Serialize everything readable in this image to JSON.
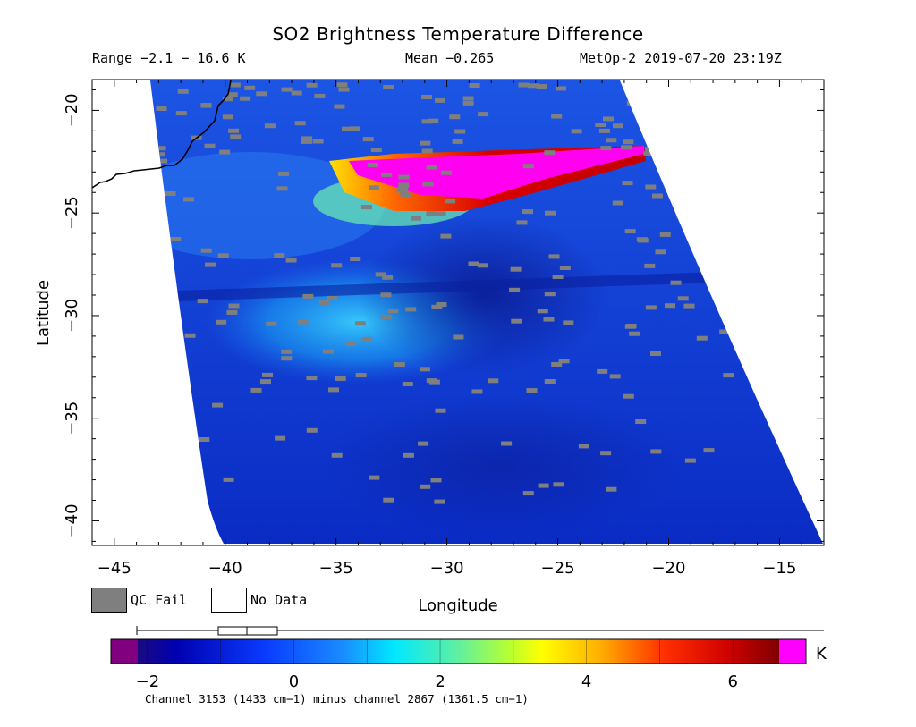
{
  "header": {
    "title": "SO2 Brightness Temperature Difference",
    "range": "Range −2.1 − 16.6 K",
    "mean": "Mean −0.265",
    "satellite": "MetOp-2 2019-07-20 23:19Z"
  },
  "legend": {
    "qc_fail": "QC Fail",
    "no_data": "No Data",
    "qc_color": "#7f7f7f"
  },
  "colorbar": {
    "unit": "K",
    "ticks": [
      "−2",
      "0",
      "2",
      "4",
      "6"
    ],
    "footnote": "Channel 3153 (1433 cm−1) minus channel 2867 (1361.5 cm−1)"
  },
  "chart_data": {
    "type": "heatmap",
    "title": "SO2 Brightness Temperature Difference",
    "xlabel": "Longitude",
    "ylabel": "Latitude",
    "xlim": [
      -46,
      -13
    ],
    "ylim": [
      -41.2,
      -18.5
    ],
    "xticks": [
      "−45",
      "−40",
      "−35",
      "−30",
      "−25",
      "−20",
      "−15"
    ],
    "yticks": [
      "−20",
      "−25",
      "−30",
      "−35",
      "−40"
    ],
    "value_range": [
      -2.1,
      16.6
    ],
    "mean": -0.265,
    "colorbar_range": [
      -2.5,
      7
    ],
    "features": [
      {
        "name": "SO2 plume",
        "lon": [
          -35,
          -21
        ],
        "lat": [
          -25,
          -22
        ],
        "value_max": 7
      },
      {
        "name": "moderate band",
        "lon": [
          -38,
          -30
        ],
        "lat": [
          -33,
          -29
        ],
        "value": 1
      }
    ]
  }
}
